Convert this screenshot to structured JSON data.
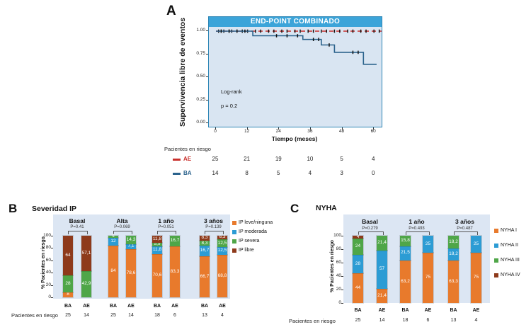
{
  "figure": {
    "panel_a": {
      "label": "A",
      "title": "END-POINT COMBINADO",
      "ylabel": "Supervivencia libre de eventos",
      "xlabel": "Tiempo (meses)",
      "annotation_line1": "Log-rank",
      "annotation_line2": "p = 0.2",
      "risk_label": "Pacientes en riesgo"
    },
    "panel_b": {
      "label": "B",
      "title": "Severidad IP",
      "ylabel": "% Pacientes en riesgo",
      "risk_label": "Pacientes en riesgo"
    },
    "panel_c": {
      "label": "C",
      "title": "NYHA",
      "ylabel": "% Pacientes en riesgo",
      "risk_label": "Pacientes en riesgo"
    }
  },
  "colors": {
    "header_blue": "#3ba4d9",
    "plot_bg_km": "#d9e5f2",
    "plot_bg_bars": "#dce6f3",
    "km_blue": "#2a628c",
    "km_red": "#c9302c",
    "orange": "#e87a2c",
    "blue": "#2c9cd4",
    "green": "#4fa648",
    "brown": "#8e3a1b",
    "censor_black": "#111111"
  },
  "chart_data": [
    {
      "type": "line",
      "subtype": "kaplan-meier-step",
      "title": "END-POINT COMBINADO",
      "xlabel": "Tiempo (meses)",
      "ylabel": "Supervivencia libre de eventos",
      "xlim": [
        0,
        63
      ],
      "ylim": [
        0,
        1.05
      ],
      "xticks": [
        0,
        12,
        24,
        36,
        48,
        60
      ],
      "yticks": [
        "1.00",
        "0.75",
        "0.50",
        "0.25",
        "0.00"
      ],
      "ytick_values": [
        1.0,
        0.75,
        0.5,
        0.25,
        0.0
      ],
      "grid": false,
      "annotations": [
        "Log-rank",
        "p = 0.2"
      ],
      "series": [
        {
          "name": "AE",
          "color": "#c9302c",
          "line_style": "dashed",
          "points": [
            [
              0,
              1.0
            ],
            [
              63,
              1.0
            ]
          ],
          "censor_marks": [
            [
              1,
              1
            ],
            [
              2,
              1
            ],
            [
              3,
              1
            ],
            [
              5,
              1
            ],
            [
              6,
              1
            ],
            [
              8,
              1
            ],
            [
              10,
              1
            ],
            [
              12,
              1
            ],
            [
              15,
              1
            ],
            [
              17,
              1
            ],
            [
              20,
              1
            ],
            [
              22,
              1
            ],
            [
              25,
              1
            ],
            [
              27,
              1
            ],
            [
              30,
              1
            ],
            [
              32,
              1
            ],
            [
              35,
              1
            ],
            [
              37,
              1
            ],
            [
              40,
              1
            ],
            [
              42,
              1
            ],
            [
              45,
              1
            ],
            [
              47,
              1
            ],
            [
              50,
              1
            ],
            [
              52,
              1
            ],
            [
              55,
              1
            ],
            [
              57,
              1
            ],
            [
              60,
              1
            ],
            [
              62,
              1
            ]
          ]
        },
        {
          "name": "BA",
          "color": "#2a628c",
          "line_style": "solid",
          "points": [
            [
              0,
              1.0
            ],
            [
              14,
              1.0
            ],
            [
              14,
              0.95
            ],
            [
              33,
              0.95
            ],
            [
              33,
              0.91
            ],
            [
              40,
              0.91
            ],
            [
              40,
              0.85
            ],
            [
              45,
              0.85
            ],
            [
              45,
              0.77
            ],
            [
              56,
              0.77
            ],
            [
              56,
              0.64
            ],
            [
              61,
              0.64
            ]
          ],
          "censor_marks": [
            [
              2,
              1
            ],
            [
              5,
              1
            ],
            [
              8,
              1
            ],
            [
              11,
              1
            ],
            [
              23,
              0.95
            ],
            [
              27,
              0.95
            ],
            [
              31,
              0.95
            ],
            [
              37,
              0.91
            ],
            [
              39,
              0.91
            ],
            [
              43,
              0.85
            ],
            [
              52,
              0.77
            ],
            [
              54,
              0.77
            ]
          ]
        }
      ],
      "risk_table": {
        "label": "Pacientes en riesgo",
        "times": [
          0,
          12,
          24,
          36,
          48,
          60
        ],
        "rows": [
          {
            "name": "AE",
            "color": "#c9302c",
            "counts": [
              "25",
              "21",
              "19",
              "10",
              "5",
              "4"
            ]
          },
          {
            "name": "BA",
            "color": "#2a628c",
            "counts": [
              "14",
              "8",
              "5",
              "4",
              "3",
              "0"
            ]
          }
        ]
      }
    },
    {
      "type": "bar",
      "stacked": true,
      "title": "Severidad IP",
      "ylabel": "% Pacientes en riesgo",
      "ylim": [
        0,
        100
      ],
      "yticks": [
        0,
        20,
        40,
        60,
        80,
        100
      ],
      "legend_position": "right",
      "risk_label": "Pacientes en riesgo",
      "legend": [
        {
          "label": "IP leve/ninguna",
          "color": "#e87a2c"
        },
        {
          "label": "IP moderada",
          "color": "#2c9cd4"
        },
        {
          "label": "IP severa",
          "color": "#4fa648"
        },
        {
          "label": "IP libre",
          "color": "#8e3a1b"
        }
      ],
      "groups": [
        {
          "label": "Basal",
          "pvalue": "P=0.41",
          "bars": [
            {
              "name": "BA",
              "risk_n": "25",
              "segments": [
                {
                  "value": 8,
                  "label": "8"
                },
                {
                  "value": 0,
                  "label": ""
                },
                {
                  "value": 28,
                  "label": "28"
                },
                {
                  "value": 64,
                  "label": "64"
                }
              ]
            },
            {
              "name": "AE",
              "risk_n": "14",
              "segments": [
                {
                  "value": 0,
                  "label": ""
                },
                {
                  "value": 0,
                  "label": ""
                },
                {
                  "value": 42.9,
                  "label": "42,9"
                },
                {
                  "value": 57.1,
                  "label": "57,1"
                }
              ]
            }
          ]
        },
        {
          "label": "Alta",
          "pvalue": "P=0.069",
          "bars": [
            {
              "name": "BA",
              "risk_n": "25",
              "segments": [
                {
                  "value": 84,
                  "label": "84"
                },
                {
                  "value": 12,
                  "label": "12"
                },
                {
                  "value": 4,
                  "label": "4"
                },
                {
                  "value": 0,
                  "label": ""
                }
              ]
            },
            {
              "name": "AE",
              "risk_n": "14",
              "segments": [
                {
                  "value": 78.6,
                  "label": "78,6"
                },
                {
                  "value": 7.1,
                  "label": "7,1"
                },
                {
                  "value": 14.3,
                  "label": "14,3"
                },
                {
                  "value": 0,
                  "label": ""
                }
              ]
            }
          ]
        },
        {
          "label": "1 año",
          "pvalue": "P=0.051",
          "bars": [
            {
              "name": "BA",
              "risk_n": "18",
              "segments": [
                {
                  "value": 70.6,
                  "label": "70,6"
                },
                {
                  "value": 11.8,
                  "label": "11,8"
                },
                {
                  "value": 5.9,
                  "label": "5,9"
                },
                {
                  "value": 11.8,
                  "label": "11,8"
                }
              ]
            },
            {
              "name": "AE",
              "risk_n": "6",
              "segments": [
                {
                  "value": 83.3,
                  "label": "83,3"
                },
                {
                  "value": 0,
                  "label": ""
                },
                {
                  "value": 16.7,
                  "label": "16,7"
                },
                {
                  "value": 0,
                  "label": ""
                }
              ]
            }
          ]
        },
        {
          "label": "3 años",
          "pvalue": "P=0.139",
          "bars": [
            {
              "name": "BA",
              "risk_n": "13",
              "segments": [
                {
                  "value": 66.7,
                  "label": "66,7"
                },
                {
                  "value": 16.7,
                  "label": "16,7"
                },
                {
                  "value": 8.3,
                  "label": "8,3"
                },
                {
                  "value": 8.3,
                  "label": "8,3"
                }
              ]
            },
            {
              "name": "AE",
              "risk_n": "4",
              "segments": [
                {
                  "value": 68.8,
                  "label": "68,8"
                },
                {
                  "value": 12.5,
                  "label": "12,5"
                },
                {
                  "value": 12.5,
                  "label": "12,5"
                },
                {
                  "value": 6.3,
                  "label": "6,3"
                }
              ]
            }
          ]
        }
      ]
    },
    {
      "type": "bar",
      "stacked": true,
      "title": "NYHA",
      "ylabel": "% Pacientes en riesgo",
      "ylim": [
        0,
        100
      ],
      "yticks": [
        0,
        20,
        40,
        60,
        80,
        100
      ],
      "legend_position": "right",
      "risk_label": "Pacientes en riesgo",
      "legend": [
        {
          "label": "NYHA I",
          "color": "#e87a2c"
        },
        {
          "label": "NYHA II",
          "color": "#2c9cd4"
        },
        {
          "label": "NYHA III",
          "color": "#4fa648"
        },
        {
          "label": "NYHA IV",
          "color": "#8e3a1b"
        }
      ],
      "groups": [
        {
          "label": "Basal",
          "pvalue": "P=0.279",
          "bars": [
            {
              "name": "BA",
              "risk_n": "25",
              "segments": [
                {
                  "value": 44,
                  "label": "44"
                },
                {
                  "value": 28,
                  "label": "28"
                },
                {
                  "value": 24,
                  "label": "24"
                },
                {
                  "value": 4,
                  "label": "4"
                }
              ]
            },
            {
              "name": "AE",
              "risk_n": "14",
              "segments": [
                {
                  "value": 21.4,
                  "label": "21,4"
                },
                {
                  "value": 57,
                  "label": "57"
                },
                {
                  "value": 21.4,
                  "label": "21,4"
                },
                {
                  "value": 0,
                  "label": ""
                }
              ]
            }
          ]
        },
        {
          "label": "1 año",
          "pvalue": "P=0.493",
          "bars": [
            {
              "name": "BA",
              "risk_n": "18",
              "segments": [
                {
                  "value": 63.2,
                  "label": "63,2"
                },
                {
                  "value": 21.5,
                  "label": "21,5"
                },
                {
                  "value": 15.8,
                  "label": "15,8"
                },
                {
                  "value": 0,
                  "label": ""
                }
              ]
            },
            {
              "name": "AE",
              "risk_n": "6",
              "segments": [
                {
                  "value": 75,
                  "label": "75"
                },
                {
                  "value": 25,
                  "label": "25"
                },
                {
                  "value": 0,
                  "label": ""
                },
                {
                  "value": 0,
                  "label": ""
                }
              ]
            }
          ]
        },
        {
          "label": "3 años",
          "pvalue": "P=0.487",
          "bars": [
            {
              "name": "BA",
              "risk_n": "13",
              "segments": [
                {
                  "value": 63.3,
                  "label": "63,3"
                },
                {
                  "value": 18.2,
                  "label": "18,2"
                },
                {
                  "value": 18.2,
                  "label": "18,2"
                },
                {
                  "value": 0,
                  "label": ""
                }
              ]
            },
            {
              "name": "AE",
              "risk_n": "4",
              "segments": [
                {
                  "value": 75,
                  "label": "75"
                },
                {
                  "value": 25,
                  "label": "25"
                },
                {
                  "value": 0,
                  "label": ""
                },
                {
                  "value": 0,
                  "label": ""
                }
              ]
            }
          ]
        }
      ]
    }
  ]
}
